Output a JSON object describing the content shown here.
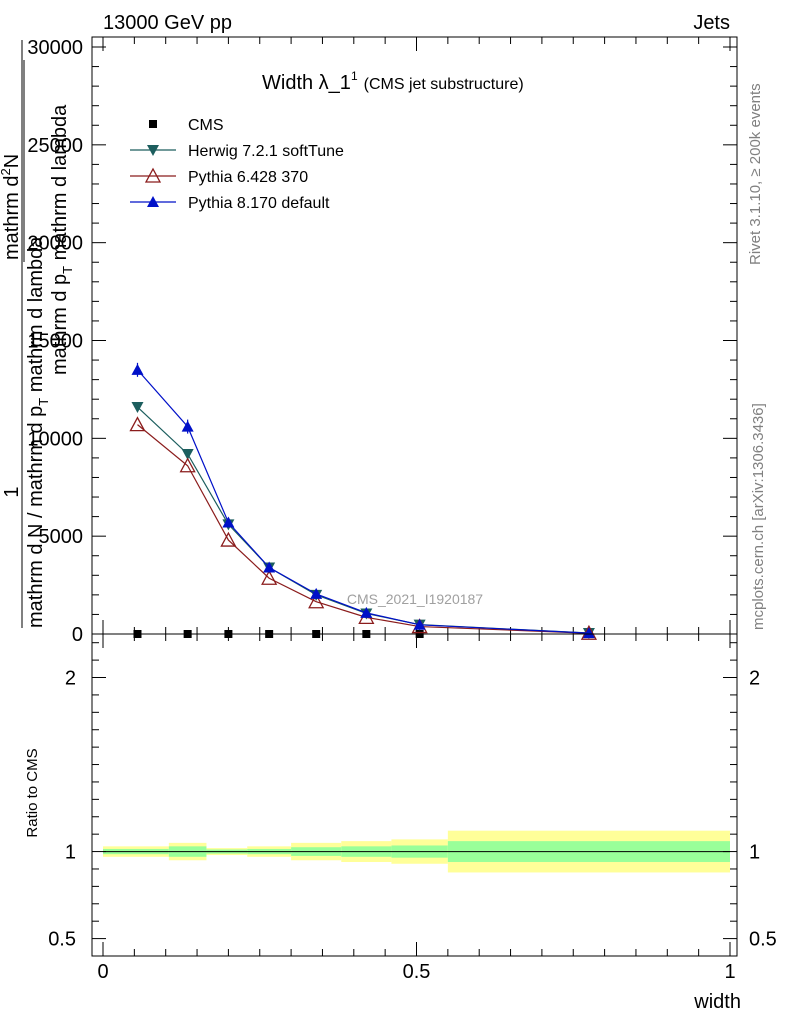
{
  "header": {
    "left": "13000 GeV pp",
    "right": "Jets"
  },
  "side_text": {
    "rivet": "Rivet 3.1.10, ≥ 200k events",
    "mcplots": "mcplots.cern.ch [arXiv:1306.3436]"
  },
  "chart_data": [
    {
      "type": "line",
      "title": "Width λ_1",
      "title_sup": "1",
      "subtitle": "(CMS jet substructure)",
      "watermark": "CMS_2021_I1920187",
      "ylabel": {
        "fraction_one": "1",
        "den_prefix": "mathrm d N / mathrm d p",
        "den_sub": "T",
        "den_suffix": " mathrm d lambda",
        "num_prefix": "mathrm d",
        "num_sup": "2",
        "num_suffix": "N",
        "extra_top": "mathrm d p",
        "extra_top_sub": "T",
        "extra_top_suffix": " mathrm d lambda"
      },
      "xlim": [
        0,
        1
      ],
      "ylim": [
        0,
        30000
      ],
      "yticks": [
        0,
        5000,
        10000,
        15000,
        20000,
        25000,
        30000
      ],
      "yticklabels": [
        "0",
        "5000",
        "10000",
        "15000",
        "20000",
        "25000",
        "30000"
      ],
      "series": [
        {
          "name": "CMS",
          "marker": "square",
          "color": "#000000",
          "x": [
            0.055,
            0.135,
            0.2,
            0.265,
            0.34,
            0.42,
            0.505,
            0.775
          ],
          "values": [
            8,
            8,
            8,
            8,
            8,
            8,
            8,
            8
          ]
        },
        {
          "name": "Herwig 7.2.1 softTune",
          "marker": "triangle-down",
          "color": "#1c5e5e",
          "x": [
            0.055,
            0.135,
            0.2,
            0.265,
            0.34,
            0.42,
            0.505,
            0.775
          ],
          "values": [
            11600,
            9200,
            5600,
            3400,
            2000,
            1050,
            480,
            50
          ]
        },
        {
          "name": "Pythia 6.428 370",
          "marker": "triangle-up-open",
          "color": "#8b1c1c",
          "x": [
            0.055,
            0.135,
            0.2,
            0.265,
            0.34,
            0.42,
            0.505,
            0.775
          ],
          "values": [
            10700,
            8600,
            4800,
            2850,
            1650,
            850,
            380,
            40
          ]
        },
        {
          "name": "Pythia 8.170 default",
          "marker": "triangle-up",
          "color": "#0010c8",
          "x": [
            0.055,
            0.135,
            0.2,
            0.265,
            0.34,
            0.42,
            0.505,
            0.775
          ],
          "values": [
            13500,
            10600,
            5700,
            3400,
            2050,
            1080,
            470,
            45
          ]
        }
      ]
    },
    {
      "type": "area",
      "ylabel": "Ratio to CMS",
      "xlabel": "width",
      "xlim": [
        0,
        1
      ],
      "ylim": [
        0.4,
        2.25
      ],
      "yticks": [
        0.5,
        1,
        2
      ],
      "yticklabels": [
        "0.5",
        "1",
        "2"
      ],
      "xticks": [
        0,
        0.5,
        1
      ],
      "xticklabels": [
        "0",
        "0.5",
        "1"
      ],
      "bands": {
        "bins": [
          [
            0,
            0.105
          ],
          [
            0.105,
            0.165
          ],
          [
            0.165,
            0.23
          ],
          [
            0.23,
            0.3
          ],
          [
            0.3,
            0.38
          ],
          [
            0.38,
            0.46
          ],
          [
            0.46,
            0.55
          ],
          [
            0.55,
            1.0
          ]
        ],
        "yellow_half_width": [
          0.03,
          0.05,
          0.02,
          0.03,
          0.05,
          0.06,
          0.07,
          0.12
        ],
        "green_half_width": [
          0.015,
          0.03,
          0.012,
          0.015,
          0.025,
          0.03,
          0.035,
          0.06
        ],
        "yellow_color": "#ffff99",
        "green_color": "#99ff99"
      },
      "reference": 1
    }
  ]
}
